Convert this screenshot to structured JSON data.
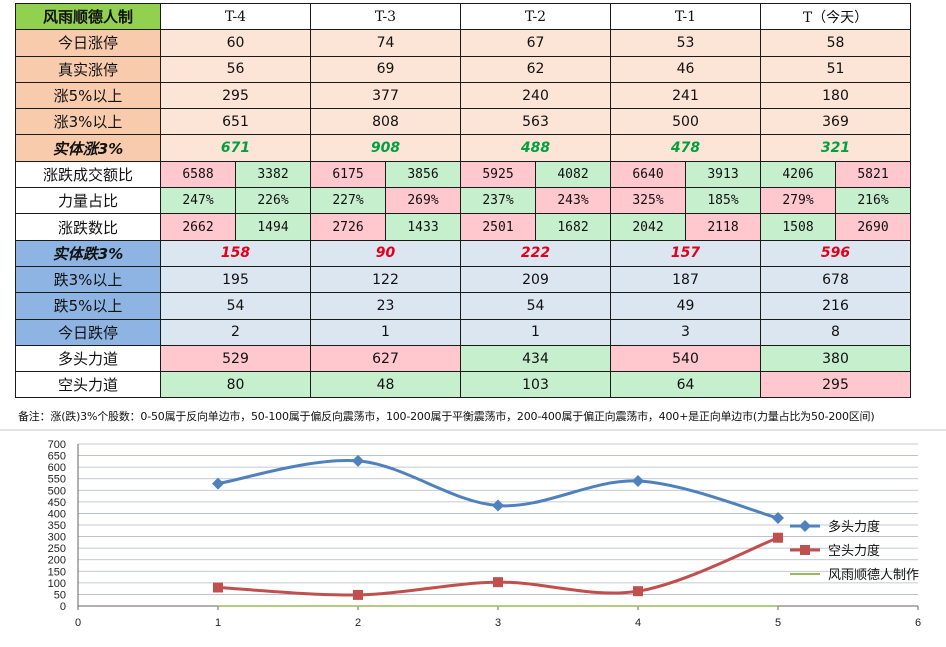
{
  "table": {
    "title": "风雨顺德人制",
    "headers": [
      "T-4",
      "T-3",
      "T-2",
      "T-1",
      "T（今天）"
    ],
    "rows": [
      {
        "label": "今日涨停",
        "values": [
          "60",
          "74",
          "67",
          "53",
          "58"
        ]
      },
      {
        "label": "真实涨停",
        "values": [
          "56",
          "69",
          "62",
          "46",
          "51"
        ]
      },
      {
        "label": "涨5%以上",
        "values": [
          "295",
          "377",
          "240",
          "241",
          "180"
        ]
      },
      {
        "label": "涨3%以上",
        "values": [
          "651",
          "808",
          "563",
          "500",
          "369"
        ]
      },
      {
        "label": "实体涨3%",
        "values": [
          "671",
          "908",
          "488",
          "478",
          "321"
        ]
      },
      {
        "label": "涨跌成交额比",
        "pairs": [
          [
            "6588",
            "3382"
          ],
          [
            "6175",
            "3856"
          ],
          [
            "5925",
            "4082"
          ],
          [
            "6640",
            "3913"
          ],
          [
            "4206",
            "5821"
          ]
        ]
      },
      {
        "label": "力量占比",
        "pairs": [
          [
            "247%",
            "226%"
          ],
          [
            "227%",
            "269%"
          ],
          [
            "237%",
            "243%"
          ],
          [
            "325%",
            "185%"
          ],
          [
            "279%",
            "216%"
          ]
        ]
      },
      {
        "label": "涨跌数比",
        "pairs": [
          [
            "2662",
            "1494"
          ],
          [
            "2726",
            "1433"
          ],
          [
            "2501",
            "1682"
          ],
          [
            "2042",
            "2118"
          ],
          [
            "1508",
            "2690"
          ]
        ]
      },
      {
        "label": "实体跌3%",
        "values": [
          "158",
          "90",
          "222",
          "157",
          "596"
        ]
      },
      {
        "label": "跌3%以上",
        "values": [
          "195",
          "122",
          "209",
          "187",
          "678"
        ]
      },
      {
        "label": "跌5%以上",
        "values": [
          "54",
          "23",
          "54",
          "49",
          "216"
        ]
      },
      {
        "label": "今日跌停",
        "values": [
          "2",
          "1",
          "1",
          "3",
          "8"
        ]
      },
      {
        "label": "多头力道",
        "values": [
          "529",
          "627",
          "434",
          "540",
          "380"
        ]
      },
      {
        "label": "空头力道",
        "values": [
          "80",
          "48",
          "103",
          "64",
          "295"
        ]
      }
    ]
  },
  "note": "备注：涨(跌)3%个股数：0-50属于反向单边市，50-100属于偏反向震荡市，100-200属于平衡震荡市，200-400属于偏正向震荡市，400+是正向单边市(力量占比为50-200区间)",
  "colors": {
    "bull": "#4f81bd",
    "bear": "#c0504d",
    "maker": "#9bbb59",
    "grid": "#b0b8c8"
  },
  "chart_data": {
    "type": "line",
    "xlim": [
      0,
      6
    ],
    "ylim": [
      0,
      700
    ],
    "x_ticks": [
      0,
      1,
      2,
      3,
      4,
      5,
      6
    ],
    "y_ticks": [
      0,
      50,
      100,
      150,
      200,
      250,
      300,
      350,
      400,
      450,
      500,
      550,
      600,
      650,
      700
    ],
    "grid": "horizontal",
    "legend_position": "right",
    "smooth": true,
    "series": [
      {
        "name": "多头力度",
        "x": [
          1,
          2,
          3,
          4,
          5
        ],
        "values": [
          529,
          627,
          434,
          540,
          380
        ],
        "marker": "diamond"
      },
      {
        "name": "空头力度",
        "x": [
          1,
          2,
          3,
          4,
          5
        ],
        "values": [
          80,
          48,
          103,
          64,
          295
        ],
        "marker": "square"
      },
      {
        "name": "风雨顺德人制作",
        "x": [
          1,
          2,
          3,
          4,
          5
        ],
        "values": [
          0,
          0,
          0,
          0,
          0
        ],
        "marker": "none"
      }
    ]
  }
}
